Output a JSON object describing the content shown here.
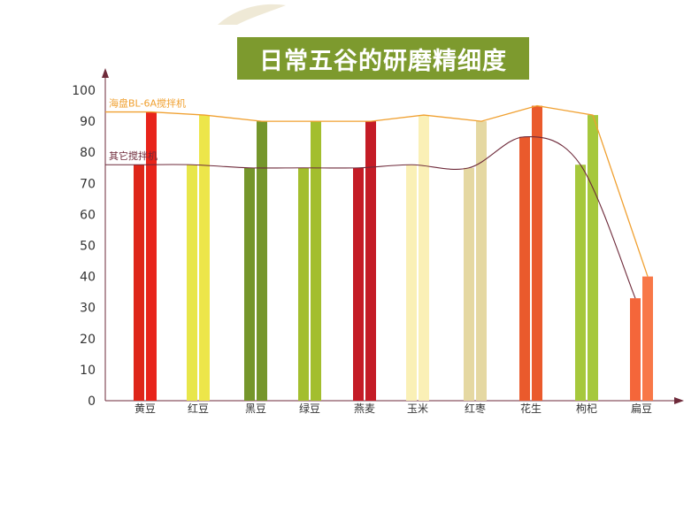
{
  "chart_data": {
    "type": "bar",
    "title": "日常五谷的研磨精细度",
    "categories": [
      "黄豆",
      "红豆",
      "黑豆",
      "绿豆",
      "燕麦",
      "玉米",
      "红枣",
      "花生",
      "枸杞",
      "扁豆"
    ],
    "yticks": [
      0,
      10,
      20,
      30,
      40,
      50,
      60,
      70,
      80,
      90,
      100
    ],
    "ylim": [
      0,
      100
    ],
    "series": [
      {
        "name": "其它搅拌机",
        "values": [
          76,
          76,
          75,
          75,
          75,
          76,
          75,
          85,
          76,
          33
        ],
        "color": "#6e2a3a"
      },
      {
        "name": "海盘BL-6A搅拌机",
        "values": [
          93,
          92,
          90,
          90,
          90,
          92,
          90,
          95,
          92,
          40
        ],
        "color": "#f0a030"
      }
    ],
    "bar_colors": [
      [
        "#de2619",
        "#e8241b"
      ],
      [
        "#e8e64a",
        "#ede64a"
      ],
      [
        "#75962b",
        "#75962b"
      ],
      [
        "#a3be2e",
        "#a3be2e"
      ],
      [
        "#c41c26",
        "#c41c26"
      ],
      [
        "#faf0b6",
        "#faf0b6"
      ],
      [
        "#e5d8a2",
        "#e5d8a2"
      ],
      [
        "#ea5a2c",
        "#ea5a2c"
      ],
      [
        "#a6c83c",
        "#a6c83c"
      ],
      [
        "#f4663a",
        "#f87848"
      ]
    ],
    "axis_color": "#6e2a3a",
    "grid": false,
    "legend": "inline"
  }
}
